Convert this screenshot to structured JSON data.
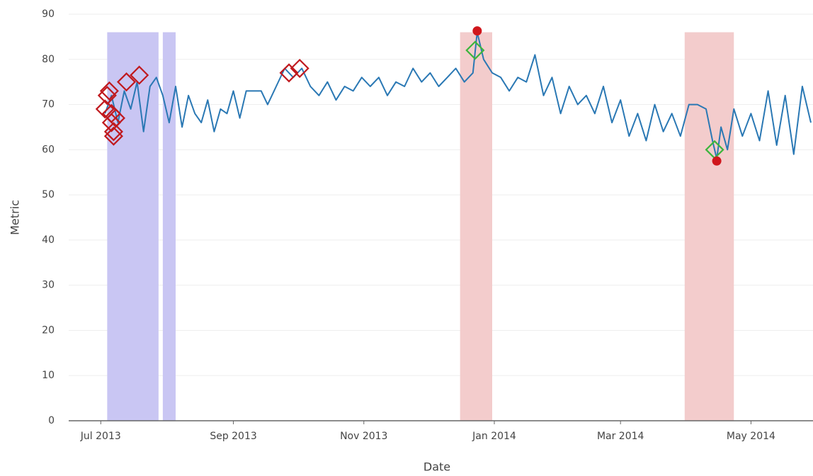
{
  "chart_data": {
    "type": "line",
    "x_label": "Date",
    "y_label": "Metric",
    "xlim": [
      "2013-06-16",
      "2014-05-30"
    ],
    "xticks": [
      {
        "value": "2013-07-01",
        "label": "Jul 2013"
      },
      {
        "value": "2013-09-01",
        "label": "Sep 2013"
      },
      {
        "value": "2013-11-01",
        "label": "Nov 2013"
      },
      {
        "value": "2014-01-01",
        "label": "Jan 2014"
      },
      {
        "value": "2014-03-01",
        "label": "Mar 2014"
      },
      {
        "value": "2014-05-01",
        "label": "May 2014"
      }
    ],
    "ylim": [
      0,
      90
    ],
    "yticks": [
      0,
      10,
      20,
      30,
      40,
      50,
      60,
      70,
      80,
      90
    ],
    "grid": true,
    "shapes": [
      {
        "x0": "2013-07-04",
        "x1": "2013-07-28",
        "y0": 0,
        "y1": 86,
        "color": "#c9c6f3"
      },
      {
        "x0": "2013-07-30",
        "x1": "2013-08-05",
        "y0": 0,
        "y1": 86,
        "color": "#c9c6f3"
      },
      {
        "x0": "2013-12-16",
        "x1": "2013-12-31",
        "y0": 0,
        "y1": 86,
        "color": "#f3cccc"
      },
      {
        "x0": "2014-03-31",
        "x1": "2014-04-23",
        "y0": 0,
        "y1": 86,
        "color": "#f3cccc"
      }
    ],
    "series": [
      {
        "mode": "line",
        "color": "#2a78b4",
        "x": [
          "2013-07-03",
          "2013-07-06",
          "2013-07-09",
          "2013-07-12",
          "2013-07-15",
          "2013-07-18",
          "2013-07-21",
          "2013-07-24",
          "2013-07-27",
          "2013-07-30",
          "2013-08-02",
          "2013-08-05",
          "2013-08-08",
          "2013-08-11",
          "2013-08-14",
          "2013-08-17",
          "2013-08-20",
          "2013-08-23",
          "2013-08-26",
          "2013-08-29",
          "2013-09-01",
          "2013-09-04",
          "2013-09-07",
          "2013-09-14",
          "2013-09-17",
          "2013-09-21",
          "2013-09-25",
          "2013-09-29",
          "2013-10-03",
          "2013-10-07",
          "2013-10-11",
          "2013-10-15",
          "2013-10-19",
          "2013-10-23",
          "2013-10-27",
          "2013-10-31",
          "2013-11-04",
          "2013-11-08",
          "2013-11-12",
          "2013-11-16",
          "2013-11-20",
          "2013-11-24",
          "2013-11-28",
          "2013-12-02",
          "2013-12-06",
          "2013-12-10",
          "2013-12-14",
          "2013-12-18",
          "2013-12-22",
          "2013-12-24",
          "2013-12-27",
          "2013-12-31",
          "2014-01-04",
          "2014-01-08",
          "2014-01-12",
          "2014-01-16",
          "2014-01-20",
          "2014-01-24",
          "2014-01-28",
          "2014-02-01",
          "2014-02-05",
          "2014-02-09",
          "2014-02-13",
          "2014-02-17",
          "2014-02-21",
          "2014-02-25",
          "2014-03-01",
          "2014-03-05",
          "2014-03-09",
          "2014-03-13",
          "2014-03-17",
          "2014-03-21",
          "2014-03-25",
          "2014-03-29",
          "2014-04-02",
          "2014-04-06",
          "2014-04-10",
          "2014-04-13",
          "2014-04-15",
          "2014-04-17",
          "2014-04-20",
          "2014-04-23",
          "2014-04-27",
          "2014-05-01",
          "2014-05-05",
          "2014-05-09",
          "2014-05-13",
          "2014-05-17",
          "2014-05-21",
          "2014-05-25",
          "2014-05-29"
        ],
        "values": [
          68,
          72,
          66,
          73,
          69,
          75,
          64,
          74,
          76,
          72,
          66,
          74,
          65,
          72,
          68,
          66,
          71,
          64,
          69,
          68,
          73,
          67,
          73,
          73,
          70,
          74,
          78,
          76,
          78,
          74,
          72,
          75,
          71,
          74,
          73,
          76,
          74,
          76,
          72,
          75,
          74,
          78,
          75,
          77,
          74,
          76,
          78,
          75,
          77,
          86,
          80,
          77,
          76,
          73,
          76,
          75,
          81,
          72,
          76,
          68,
          74,
          70,
          72,
          68,
          74,
          66,
          71,
          63,
          68,
          62,
          70,
          64,
          68,
          63,
          70,
          70,
          69,
          62,
          58,
          65,
          60,
          69,
          63,
          68,
          62,
          73,
          61,
          72,
          59,
          74,
          66
        ]
      },
      {
        "mode": "markers",
        "marker": "diamond-open",
        "color": "#c0191e",
        "x": [
          "2013-07-03",
          "2013-07-04",
          "2013-07-05",
          "2013-07-06",
          "2013-07-06",
          "2013-07-07",
          "2013-07-07",
          "2013-07-08",
          "2013-07-13",
          "2013-07-19",
          "2013-09-27",
          "2013-10-02"
        ],
        "values": [
          69,
          72,
          73,
          66,
          68,
          64,
          63,
          67,
          75,
          76.5,
          77,
          78
        ]
      },
      {
        "mode": "markers",
        "marker": "diamond-open",
        "color": "#3cb53c",
        "x": [
          "2013-12-23",
          "2014-04-14"
        ],
        "values": [
          82,
          60
        ]
      },
      {
        "mode": "markers",
        "marker": "circle",
        "color": "#d0161c",
        "x": [
          "2013-12-24",
          "2014-04-15"
        ],
        "values": [
          86.3,
          57.5
        ]
      }
    ]
  }
}
